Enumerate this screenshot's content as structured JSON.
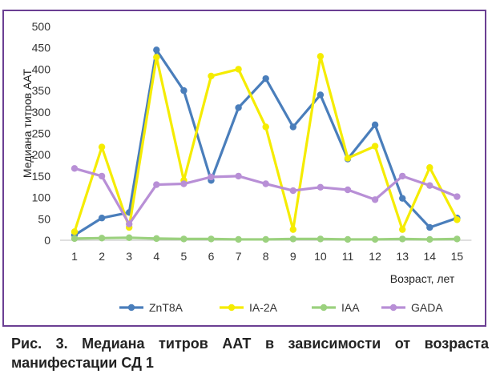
{
  "caption": "Рис. 3. Медиана титров ААТ в зависимости от возраста манифестации СД 1",
  "chart_data": {
    "type": "line",
    "ylabel": "Медиана титров ААТ",
    "xlabel": "Возраст, лет",
    "ylim": [
      0,
      500
    ],
    "yticks": [
      0,
      50,
      100,
      150,
      200,
      250,
      300,
      350,
      400,
      450,
      500
    ],
    "categories": [
      "1",
      "2",
      "3",
      "4",
      "5",
      "6",
      "7",
      "8",
      "9",
      "10",
      "11",
      "12",
      "13",
      "14",
      "15"
    ],
    "grid": false,
    "legend": "bottom",
    "series": [
      {
        "name": "ZnT8A",
        "color": "#4a7ebb",
        "values": [
          12,
          52,
          65,
          445,
          350,
          140,
          310,
          378,
          265,
          340,
          190,
          270,
          98,
          30,
          52
        ]
      },
      {
        "name": "IA-2A",
        "color": "#f5ec00",
        "values": [
          20,
          218,
          30,
          428,
          140,
          384,
          400,
          265,
          25,
          430,
          192,
          220,
          25,
          170,
          48
        ]
      },
      {
        "name": "IAA",
        "color": "#9bd17e",
        "values": [
          4,
          5,
          6,
          4,
          3,
          3,
          2,
          2,
          3,
          3,
          2,
          2,
          3,
          2,
          3
        ]
      },
      {
        "name": "GADA",
        "color": "#b88fd6",
        "values": [
          168,
          150,
          38,
          130,
          132,
          148,
          150,
          132,
          116,
          124,
          118,
          95,
          150,
          128,
          102
        ]
      }
    ]
  }
}
